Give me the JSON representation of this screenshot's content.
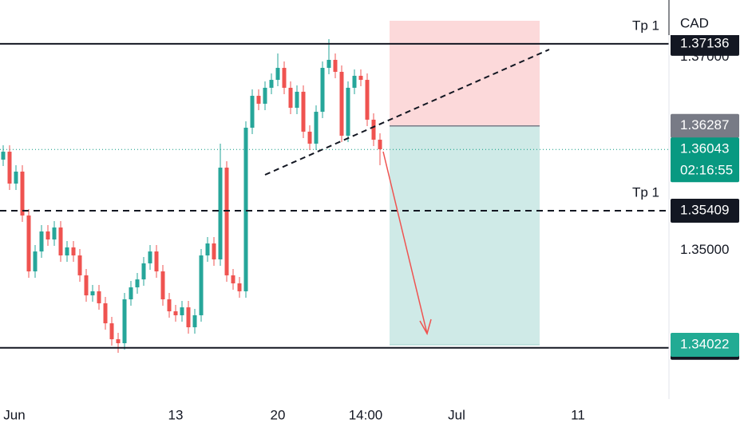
{
  "chart_data": {
    "type": "candlestick",
    "currency": "CAD",
    "up_color": "#26a69a",
    "down_color": "#ef5350",
    "open": [
      1.35938,
      1.3602,
      1.3569,
      1.35814,
      1.3536,
      1.34782,
      1.34988,
      1.35195,
      1.35112,
      1.35236,
      1.34947,
      1.3503,
      1.34947,
      1.34741,
      1.34534,
      1.34576,
      1.34452,
      1.34245,
      1.3408,
      1.34039,
      1.34493,
      1.34617,
      1.34699,
      1.34865,
      1.34988,
      1.34782,
      1.34493,
      1.34369,
      1.34328,
      1.3441,
      1.34204,
      1.34328,
      1.34947,
      1.35071,
      1.34906,
      1.35855,
      1.34741,
      1.34658,
      1.34576,
      1.36268,
      1.36598,
      1.36516,
      1.36681,
      1.36763,
      1.36887,
      1.36681,
      1.36474,
      1.3664,
      1.36227,
      1.36103,
      1.36433,
      1.36887,
      1.3697,
      1.36846,
      1.36185,
      1.36681,
      1.36805,
      1.36763,
      1.36351,
      1.36144
    ],
    "high": [
      1.36086,
      1.36086,
      1.3588,
      1.3588,
      1.35426,
      1.35054,
      1.35261,
      1.35261,
      1.35302,
      1.35302,
      1.35096,
      1.35096,
      1.35013,
      1.34807,
      1.34642,
      1.34642,
      1.34518,
      1.34311,
      1.34146,
      1.34559,
      1.34683,
      1.34765,
      1.34931,
      1.35054,
      1.35054,
      1.34848,
      1.34559,
      1.34435,
      1.34476,
      1.34476,
      1.34394,
      1.35013,
      1.35137,
      1.35137,
      1.36103,
      1.35921,
      1.34807,
      1.34724,
      1.36334,
      1.36664,
      1.36664,
      1.36747,
      1.36829,
      1.37036,
      1.36953,
      1.36747,
      1.36706,
      1.36706,
      1.36293,
      1.36499,
      1.36953,
      1.37184,
      1.37036,
      1.36912,
      1.36747,
      1.36871,
      1.36871,
      1.36829,
      1.36417,
      1.3621
    ],
    "low": [
      1.35872,
      1.35624,
      1.35624,
      1.35294,
      1.34716,
      1.34716,
      1.34922,
      1.35046,
      1.35046,
      1.34881,
      1.34881,
      1.34881,
      1.34675,
      1.34468,
      1.34468,
      1.34386,
      1.34179,
      1.34014,
      1.3394,
      1.33973,
      1.34427,
      1.34551,
      1.34633,
      1.34798,
      1.34716,
      1.34427,
      1.34303,
      1.34262,
      1.34262,
      1.34138,
      1.34138,
      1.34262,
      1.34881,
      1.3484,
      1.3484,
      1.34675,
      1.34592,
      1.34509,
      1.34509,
      1.36202,
      1.3645,
      1.3645,
      1.36615,
      1.36697,
      1.36615,
      1.36408,
      1.36408,
      1.36161,
      1.36037,
      1.36037,
      1.36367,
      1.36821,
      1.3678,
      1.36119,
      1.36119,
      1.36615,
      1.36697,
      1.36285,
      1.36078,
      1.3588
    ],
    "close": [
      1.3602,
      1.3569,
      1.35814,
      1.3536,
      1.34782,
      1.34988,
      1.35195,
      1.35112,
      1.35236,
      1.34947,
      1.3503,
      1.34947,
      1.34741,
      1.34534,
      1.34576,
      1.34452,
      1.34245,
      1.3408,
      1.34039,
      1.34493,
      1.34617,
      1.34699,
      1.34865,
      1.34988,
      1.34782,
      1.34493,
      1.34369,
      1.34328,
      1.3441,
      1.34204,
      1.34328,
      1.34947,
      1.35071,
      1.34906,
      1.35855,
      1.34741,
      1.34658,
      1.34576,
      1.36268,
      1.36598,
      1.36516,
      1.36681,
      1.36763,
      1.36887,
      1.36681,
      1.36474,
      1.3664,
      1.36227,
      1.36103,
      1.36433,
      1.36887,
      1.3697,
      1.36846,
      1.36185,
      1.36681,
      1.36805,
      1.36763,
      1.36351,
      1.36144,
      1.36045
    ],
    "xlim": [
      -0.5,
      103.25
    ],
    "xticks": [
      {
        "value": 1.75,
        "label": "Jun"
      },
      {
        "value": 27,
        "label": "13"
      },
      {
        "value": 43,
        "label": "20"
      },
      {
        "value": 56.75,
        "label": "14:00"
      },
      {
        "value": 71,
        "label": "Jul"
      },
      {
        "value": 90,
        "label": "11"
      }
    ],
    "ylim": [
      1.33461,
      1.37589
    ],
    "yticks": [
      {
        "value": 1.35,
        "label": "1.35000"
      },
      {
        "value": 1.37,
        "label": "1.37000"
      }
    ],
    "levels": [
      {
        "value": 1.37136,
        "style": "solid",
        "label": "Tp 1"
      },
      {
        "value": 1.35409,
        "style": "dashed",
        "label": "Tp 1"
      },
      {
        "value": 1.33991,
        "style": "solid"
      }
    ],
    "position": {
      "entry": 1.36287,
      "target": 1.34022
    },
    "last_price": 1.36043,
    "countdown": "02:16:55"
  }
}
